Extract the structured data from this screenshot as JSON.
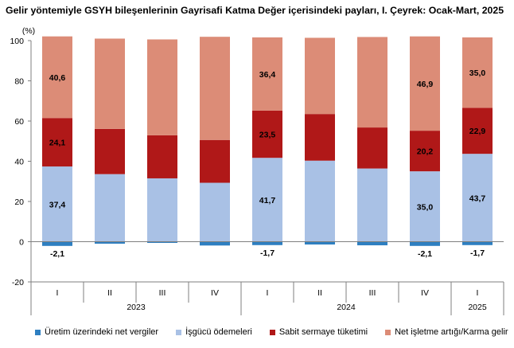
{
  "chart_data": {
    "type": "stacked-bar",
    "title": "Gelir yöntemiyle GSYH bileşenlerinin Gayrisafi Katma Değer içerisindeki payları, I. Çeyrek: Ocak-Mart, 2025",
    "ylabel": "(%)",
    "xlabel": "",
    "ylim": [
      -20,
      100
    ],
    "yticks": [
      "-20",
      "0",
      "20",
      "40",
      "60",
      "80",
      "100"
    ],
    "grid": false,
    "legend_position": "bottom",
    "categories": [
      "I",
      "II",
      "III",
      "IV",
      "I",
      "II",
      "III",
      "IV",
      "I"
    ],
    "years": [
      {
        "label": "2023",
        "from": 0,
        "to": 3
      },
      {
        "label": "2024",
        "from": 4,
        "to": 7
      },
      {
        "label": "2025",
        "from": 8,
        "to": 8
      }
    ],
    "series": [
      {
        "name": "Üretim üzerindeki net vergiler",
        "color": "#2e7fc1",
        "values": [
          -2.1,
          -1.0,
          -0.6,
          -1.9,
          -1.7,
          -1.4,
          -1.8,
          -2.1,
          -1.7
        ],
        "labels": [
          "-2,1",
          "",
          "",
          "",
          "-1,7",
          "",
          "",
          "-2,1",
          "-1,7"
        ]
      },
      {
        "name": "İşgücü ödemeleri",
        "color": "#a9c1e5",
        "values": [
          37.4,
          33.6,
          31.5,
          29.3,
          41.7,
          40.3,
          36.4,
          35.0,
          43.7
        ],
        "labels": [
          "37,4",
          "",
          "",
          "",
          "41,7",
          "",
          "",
          "35,0",
          "43,7"
        ]
      },
      {
        "name": "Sabit sermaye tüketimi",
        "color": "#b01818",
        "values": [
          24.1,
          22.5,
          21.4,
          21.3,
          23.5,
          23.2,
          20.4,
          20.2,
          22.9
        ],
        "labels": [
          "24,1",
          "",
          "",
          "",
          "23,5",
          "",
          "",
          "20,2",
          "22,9"
        ]
      },
      {
        "name": "Net işletme artığı/Karma gelir",
        "color": "#dc8c77",
        "values": [
          40.6,
          44.9,
          47.7,
          51.3,
          36.4,
          37.9,
          45.0,
          46.9,
          35.0
        ],
        "labels": [
          "40,6",
          "",
          "",
          "",
          "36,4",
          "",
          "",
          "46,9",
          "35,0"
        ]
      }
    ]
  }
}
